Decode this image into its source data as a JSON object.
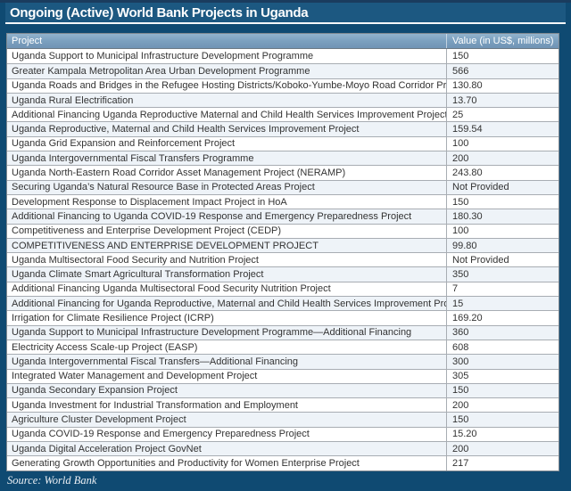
{
  "title": "Ongoing (Active) World Bank Projects in Uganda",
  "source": "Source: World Bank",
  "colors": {
    "page_background": "#0f4a72",
    "top_strip": "#1a3c5e",
    "title_bar": "#1c5881",
    "title_text": "#ffffff",
    "header_background": "#7ba0bf",
    "header_text": "#ffffff",
    "row_alt_tint": "#eef3f8",
    "row_border": "#a8adb3",
    "cell_text": "#333333"
  },
  "table": {
    "columns": [
      "Project",
      "Value (in US$, millions)"
    ],
    "rows": [
      {
        "project": "Uganda Support to Municipal Infrastructure Development Programme",
        "value": "150"
      },
      {
        "project": "Greater Kampala Metropolitan Area Urban Development Programme",
        "value": "566"
      },
      {
        "project": "Uganda Roads and Bridges in the Refugee Hosting Districts/Koboko-Yumbe-Moyo Road Corridor Project",
        "value": "130.80"
      },
      {
        "project": "Uganda Rural Electrification",
        "value": "13.70"
      },
      {
        "project": "Additional Financing Uganda Reproductive Maternal and Child Health Services Improvement Project",
        "value": "25"
      },
      {
        "project": "Uganda Reproductive, Maternal and Child Health Services Improvement Project",
        "value": "159.54"
      },
      {
        "project": "Uganda Grid Expansion and Reinforcement Project",
        "value": "100"
      },
      {
        "project": "Uganda Intergovernmental Fiscal Transfers Programme",
        "value": "200"
      },
      {
        "project": "Uganda North-Eastern Road Corridor Asset Management Project (NERAMP)",
        "value": "243.80"
      },
      {
        "project": "Securing Uganda’s Natural Resource Base in Protected Areas Project",
        "value": "Not Provided"
      },
      {
        "project": "Development Response to Displacement Impact Project in HoA",
        "value": "150"
      },
      {
        "project": "Additional Financing to Uganda COVID-19 Response and Emergency Preparedness Project",
        "value": "180.30"
      },
      {
        "project": "Competitiveness and Enterprise Development Project (CEDP)",
        "value": "100"
      },
      {
        "project": "COMPETITIVENESS AND ENTERPRISE DEVELOPMENT PROJECT",
        "value": "99.80"
      },
      {
        "project": "Uganda Multisectoral Food Security and Nutrition Project",
        "value": "Not Provided"
      },
      {
        "project": "Uganda Climate Smart Agricultural Transformation Project",
        "value": "350"
      },
      {
        "project": "Additional Financing Uganda Multisectoral Food Security Nutrition Project",
        "value": "7"
      },
      {
        "project": "Additional Financing for Uganda Reproductive, Maternal and Child Health Services Improvement Project",
        "value": "15"
      },
      {
        "project": "Irrigation for Climate Resilience Project (ICRP)",
        "value": "169.20"
      },
      {
        "project": "Uganda Support to Municipal Infrastructure Development Programme—Additional Financing",
        "value": "360"
      },
      {
        "project": "Electricity Access Scale-up Project (EASP)",
        "value": "608"
      },
      {
        "project": "Uganda Intergovernmental Fiscal Transfers—Additional Financing",
        "value": "300"
      },
      {
        "project": "Integrated Water Management and Development Project",
        "value": "305"
      },
      {
        "project": "Uganda Secondary Expansion Project",
        "value": "150"
      },
      {
        "project": "Uganda Investment for Industrial Transformation and Employment",
        "value": "200"
      },
      {
        "project": "Agriculture Cluster Development Project",
        "value": "150"
      },
      {
        "project": "Uganda COVID-19 Response and Emergency Preparedness Project",
        "value": "15.20"
      },
      {
        "project": "Uganda Digital Acceleration Project GovNet",
        "value": "200"
      },
      {
        "project": "Generating Growth Opportunities and Productivity for Women Enterprise Project",
        "value": "217"
      }
    ]
  }
}
